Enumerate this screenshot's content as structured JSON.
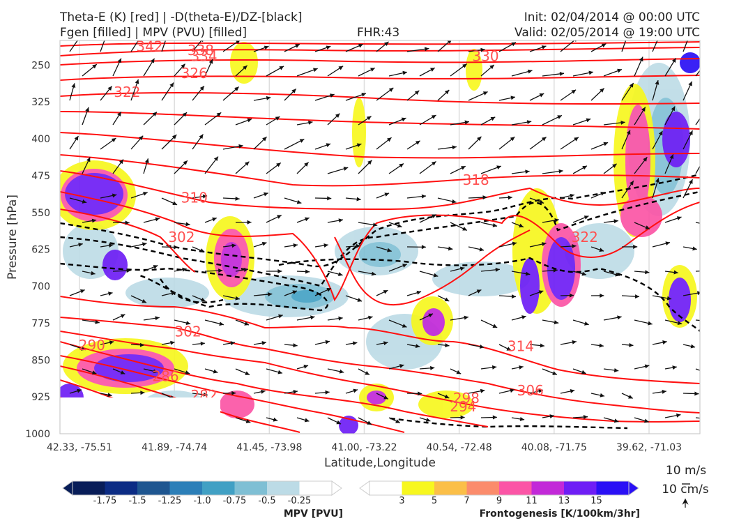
{
  "header": {
    "title_left_1": "Theta-E (K) [red] | -D(theta-E)/DZ-[black]",
    "title_left_2": "Fgen [filled] | MPV (PVU) [filled]",
    "fhr": "FHR:43",
    "init": "Init: 02/04/2014 @ 00:00 UTC",
    "valid": "Valid: 02/05/2014 @ 19:00 UTC"
  },
  "chart_data": {
    "type": "cross-section",
    "xlabel": "Latitude,Longitude",
    "ylabel": "Pressure [hPa]",
    "x_ticks": [
      "42.33, -75.51",
      "41.89, -74.74",
      "41.45, -73.98",
      "41.00, -73.22",
      "40.54, -72.48",
      "40.08, -71.75",
      "39.62, -71.03"
    ],
    "y_ticks": [
      250,
      325,
      400,
      475,
      550,
      625,
      700,
      775,
      850,
      925,
      1000
    ],
    "y_range": [
      200,
      1000
    ],
    "y_inverted": true,
    "grid": true,
    "theta_e_contour_labels": [
      {
        "value": "342",
        "x": 0.14,
        "p": 212
      },
      {
        "value": "338",
        "x": 0.22,
        "p": 220
      },
      {
        "value": "334",
        "x": 0.225,
        "p": 232
      },
      {
        "value": "330",
        "x": 0.665,
        "p": 232
      },
      {
        "value": "326",
        "x": 0.21,
        "p": 267
      },
      {
        "value": "322",
        "x": 0.105,
        "p": 305
      },
      {
        "value": "318",
        "x": 0.65,
        "p": 484
      },
      {
        "value": "310",
        "x": 0.21,
        "p": 520
      },
      {
        "value": "302",
        "x": 0.19,
        "p": 600
      },
      {
        "value": "302",
        "x": 0.2,
        "p": 792
      },
      {
        "value": "314",
        "x": 0.72,
        "p": 822
      },
      {
        "value": "290",
        "x": 0.05,
        "p": 820
      },
      {
        "value": "286",
        "x": 0.165,
        "p": 883
      },
      {
        "value": "282",
        "x": 0.225,
        "p": 922
      },
      {
        "value": "306",
        "x": 0.735,
        "p": 912
      },
      {
        "value": "298",
        "x": 0.635,
        "p": 928
      },
      {
        "value": "294",
        "x": 0.63,
        "p": 945
      },
      {
        "value": "322",
        "x": 0.82,
        "p": 600
      }
    ],
    "colorbar_mpv": {
      "title": "MPV [PVU]",
      "ticks": [
        "-1.75",
        "-1.5",
        "-1.25",
        "-1.0",
        "-0.75",
        "-0.5",
        "-0.25"
      ],
      "colors": [
        "#081d58",
        "#0c2c84",
        "#1f5690",
        "#2c7fb8",
        "#41a0c4",
        "#7fbfd4",
        "#bcdbe6",
        "#ffffff"
      ]
    },
    "colorbar_fgen": {
      "title": "Frontogenesis [K/100km/3hr]",
      "ticks": [
        "3",
        "5",
        "7",
        "9",
        "11",
        "13",
        "15"
      ],
      "colors": [
        "#ffffff",
        "#f7f71f",
        "#fbbf48",
        "#fb8c6c",
        "#fb55a6",
        "#c229d8",
        "#6e1ef5",
        "#2a10f5"
      ]
    },
    "quiver_key": {
      "label_1": "10 m/s",
      "label_2": "10 cm/s"
    }
  }
}
